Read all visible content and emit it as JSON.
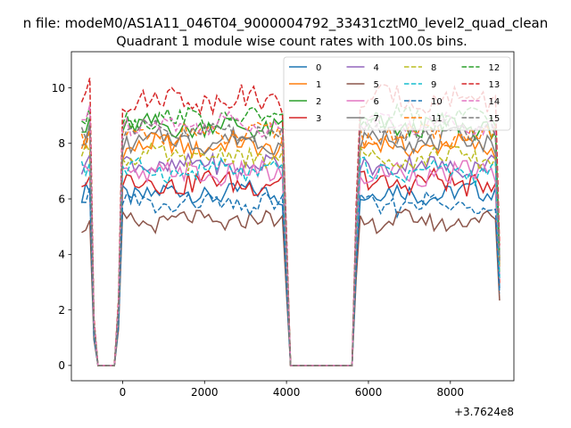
{
  "chart_data": {
    "type": "line",
    "suptitle": "n file: modeM0/AS1A11_046T04_9000004792_33431cztM0_level2_quad_clean",
    "title": "Quadrant 1 module wise count rates with 100.0s bins.",
    "xlabel": "",
    "ylabel": "",
    "offset_text": "+3.7624e8",
    "xlim": [
      -1250,
      9550
    ],
    "ylim": [
      -0.55,
      11.3
    ],
    "x_ticks": [
      0,
      2000,
      4000,
      6000,
      8000
    ],
    "y_ticks": [
      0,
      2,
      4,
      6,
      8,
      10
    ],
    "grid": false,
    "legend_position": "top-right",
    "legend_columns": 4,
    "series": [
      {
        "name": "0",
        "color": "#1f77b4",
        "style": "solid",
        "level": 6.2,
        "amp": 0.35
      },
      {
        "name": "1",
        "color": "#ff7f0e",
        "style": "solid",
        "level": 7.9,
        "amp": 0.35
      },
      {
        "name": "2",
        "color": "#2ca02c",
        "style": "solid",
        "level": 8.6,
        "amp": 0.35
      },
      {
        "name": "3",
        "color": "#d62728",
        "style": "solid",
        "level": 6.6,
        "amp": 0.4
      },
      {
        "name": "4",
        "color": "#9467bd",
        "style": "solid",
        "level": 7.2,
        "amp": 0.35
      },
      {
        "name": "5",
        "color": "#8c564b",
        "style": "solid",
        "level": 5.2,
        "amp": 0.3
      },
      {
        "name": "6",
        "color": "#e377c2",
        "style": "solid",
        "level": 6.9,
        "amp": 0.4
      },
      {
        "name": "7",
        "color": "#7f7f7f",
        "style": "solid",
        "level": 8.1,
        "amp": 0.35
      },
      {
        "name": "8",
        "color": "#bcbd22",
        "style": "dashed",
        "level": 7.5,
        "amp": 0.35
      },
      {
        "name": "9",
        "color": "#17becf",
        "style": "dashed",
        "level": 7.0,
        "amp": 0.35
      },
      {
        "name": "10",
        "color": "#1f77b4",
        "style": "dashed",
        "level": 5.8,
        "amp": 0.35
      },
      {
        "name": "11",
        "color": "#ff7f0e",
        "style": "dashed",
        "level": 8.3,
        "amp": 0.35
      },
      {
        "name": "12",
        "color": "#2ca02c",
        "style": "dashed",
        "level": 8.9,
        "amp": 0.35
      },
      {
        "name": "13",
        "color": "#d62728",
        "style": "dashed",
        "level": 9.6,
        "amp": 0.4
      },
      {
        "name": "14",
        "color": "#e377c2",
        "style": "dashed",
        "level": 8.7,
        "amp": 0.35
      },
      {
        "name": "15",
        "color": "#7f7f7f",
        "style": "dashed",
        "level": 8.4,
        "amp": 0.35
      }
    ],
    "time_bins": [
      -1000,
      -900,
      -800,
      -700,
      -600,
      -500,
      -400,
      -300,
      -200,
      -100,
      0,
      100,
      200,
      300,
      400,
      500,
      600,
      700,
      800,
      900,
      1000,
      1100,
      1200,
      1300,
      1400,
      1500,
      1600,
      1700,
      1800,
      1900,
      2000,
      2100,
      2200,
      2300,
      2400,
      2500,
      2600,
      2700,
      2800,
      2900,
      3000,
      3100,
      3200,
      3300,
      3400,
      3500,
      3600,
      3700,
      3800,
      3900,
      4000,
      4100,
      4200,
      4300,
      4400,
      4500,
      4600,
      4700,
      4800,
      4900,
      5000,
      5100,
      5200,
      5300,
      5400,
      5500,
      5600,
      5700,
      5800,
      5900,
      6000,
      6100,
      6200,
      6300,
      6400,
      6500,
      6600,
      6700,
      6800,
      6900,
      7000,
      7100,
      7200,
      7300,
      7400,
      7500,
      7600,
      7700,
      7800,
      7900,
      8000,
      8100,
      8200,
      8300,
      8400,
      8500,
      8600,
      8700,
      8800,
      8900,
      9000,
      9100,
      9200
    ],
    "profile": [
      1,
      1,
      1.05,
      0.18,
      0,
      0,
      0,
      0,
      0,
      0.25,
      1,
      1,
      1,
      1,
      1,
      1,
      1,
      1,
      1,
      1,
      1,
      1,
      1,
      1,
      1,
      1,
      1,
      1,
      1,
      1,
      1,
      1,
      1,
      1,
      1,
      1,
      1,
      1,
      1,
      1,
      1,
      1,
      1,
      1,
      1,
      1,
      1,
      1,
      1,
      1,
      0.5,
      0,
      0,
      0,
      0,
      0,
      0,
      0,
      0,
      0,
      0,
      0,
      0,
      0,
      0,
      0,
      0,
      0.6,
      1,
      1,
      1,
      1,
      1,
      1,
      1,
      1,
      1,
      1,
      1,
      1,
      1,
      1,
      1,
      1,
      1,
      1,
      1,
      1,
      1,
      1,
      1,
      1,
      1,
      1,
      1,
      1,
      1,
      1,
      1,
      1,
      1,
      1,
      0.45
    ]
  }
}
